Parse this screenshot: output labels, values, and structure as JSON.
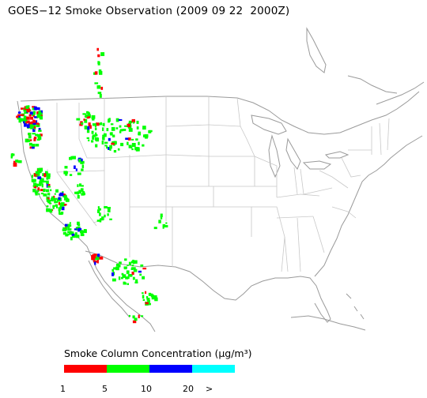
{
  "title": "GOES−12 Smoke Observation (2009 09 22  2000Z)",
  "legend": {
    "title": "Smoke Column Concentration (μg/m³)",
    "swatches": [
      {
        "name": "red",
        "color": "#ff0000"
      },
      {
        "name": "green",
        "color": "#00ff00"
      },
      {
        "name": "blue",
        "color": "#0000ff"
      },
      {
        "name": "cyan",
        "color": "#00ffff"
      }
    ],
    "ticks": [
      "1",
      "5",
      "10",
      "20",
      ">"
    ]
  },
  "colors": {
    "low": "#ff0000",
    "moderate": "#00ff00",
    "high": "#0000ff",
    "very_high": "#00ffff",
    "boundaries": "#c8c8c8",
    "coast": "#9a9a9a"
  }
}
